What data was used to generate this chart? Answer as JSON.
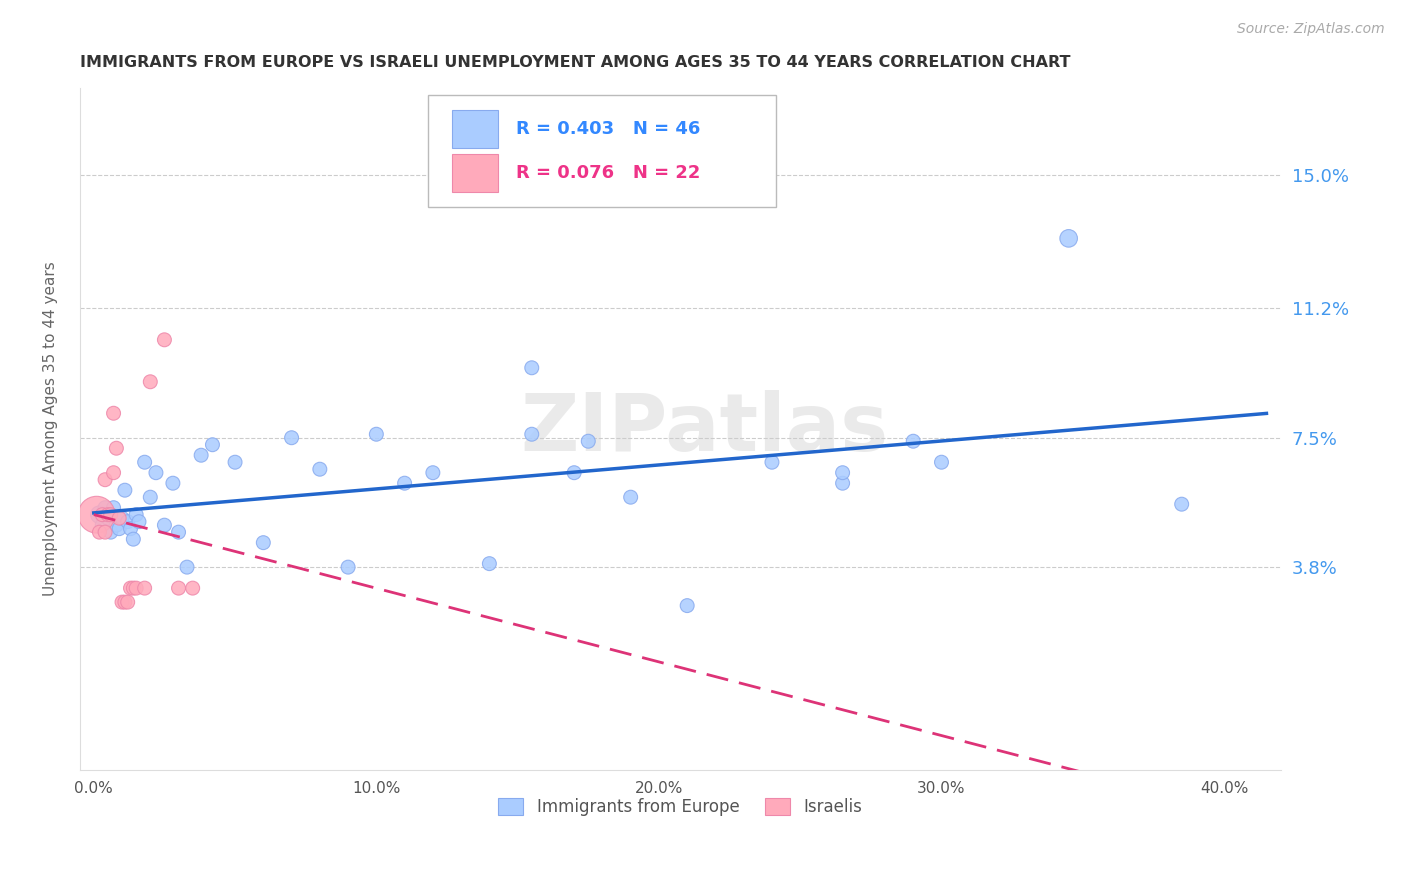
{
  "title": "IMMIGRANTS FROM EUROPE VS ISRAELI UNEMPLOYMENT AMONG AGES 35 TO 44 YEARS CORRELATION CHART",
  "source": "Source: ZipAtlas.com",
  "ylabel": "Unemployment Among Ages 35 to 44 years",
  "xlabel_ticks": [
    "0.0%",
    "10.0%",
    "20.0%",
    "30.0%",
    "40.0%"
  ],
  "xlabel_vals": [
    0.0,
    0.1,
    0.2,
    0.3,
    0.4
  ],
  "ylabel_ticks": [
    "15.0%",
    "11.2%",
    "7.5%",
    "3.8%"
  ],
  "ylabel_vals": [
    0.15,
    0.112,
    0.075,
    0.038
  ],
  "ylim": [
    -0.02,
    0.175
  ],
  "xlim": [
    -0.005,
    0.42
  ],
  "legend_r1_val": "0.403",
  "legend_n1_val": "46",
  "legend_r2_val": "0.076",
  "legend_n2_val": "22",
  "legend_label1": "Immigrants from Europe",
  "legend_label2": "Israelis",
  "watermark": "ZIPatlas",
  "blue_color": "#aaccff",
  "blue_edge": "#88aaee",
  "pink_color": "#ffaabb",
  "pink_edge": "#ee88aa",
  "trend_blue": "#2266cc",
  "trend_pink": "#dd3377",
  "blue_scatter_x": [
    0.002,
    0.003,
    0.004,
    0.005,
    0.006,
    0.007,
    0.008,
    0.009,
    0.01,
    0.011,
    0.012,
    0.013,
    0.014,
    0.015,
    0.016,
    0.018,
    0.02,
    0.022,
    0.025,
    0.028,
    0.03,
    0.033,
    0.038,
    0.042,
    0.05,
    0.06,
    0.07,
    0.08,
    0.09,
    0.1,
    0.11,
    0.12,
    0.14,
    0.155,
    0.17,
    0.19,
    0.21,
    0.24,
    0.265,
    0.29,
    0.155,
    0.175,
    0.265,
    0.3,
    0.345,
    0.385
  ],
  "blue_scatter_y": [
    0.053,
    0.05,
    0.055,
    0.052,
    0.048,
    0.055,
    0.05,
    0.049,
    0.052,
    0.06,
    0.051,
    0.049,
    0.046,
    0.053,
    0.051,
    0.068,
    0.058,
    0.065,
    0.05,
    0.062,
    0.048,
    0.038,
    0.07,
    0.073,
    0.068,
    0.045,
    0.075,
    0.066,
    0.038,
    0.076,
    0.062,
    0.065,
    0.039,
    0.076,
    0.065,
    0.058,
    0.027,
    0.068,
    0.062,
    0.074,
    0.095,
    0.074,
    0.065,
    0.068,
    0.132,
    0.056
  ],
  "blue_scatter_sizes": [
    160,
    100,
    100,
    100,
    100,
    100,
    100,
    100,
    100,
    100,
    100,
    100,
    100,
    100,
    100,
    100,
    100,
    100,
    100,
    100,
    100,
    100,
    100,
    100,
    100,
    100,
    100,
    100,
    100,
    100,
    100,
    100,
    100,
    100,
    100,
    100,
    100,
    100,
    100,
    100,
    100,
    100,
    100,
    100,
    160,
    100
  ],
  "pink_scatter_x": [
    0.001,
    0.002,
    0.003,
    0.004,
    0.004,
    0.005,
    0.006,
    0.007,
    0.007,
    0.008,
    0.009,
    0.01,
    0.011,
    0.012,
    0.013,
    0.014,
    0.015,
    0.018,
    0.02,
    0.025,
    0.03,
    0.035
  ],
  "pink_scatter_y": [
    0.053,
    0.048,
    0.053,
    0.048,
    0.063,
    0.053,
    0.053,
    0.082,
    0.065,
    0.072,
    0.052,
    0.028,
    0.028,
    0.028,
    0.032,
    0.032,
    0.032,
    0.032,
    0.091,
    0.103,
    0.032,
    0.032
  ],
  "pink_scatter_sizes": [
    700,
    100,
    100,
    100,
    100,
    100,
    100,
    100,
    100,
    100,
    100,
    100,
    100,
    100,
    100,
    100,
    100,
    100,
    100,
    100,
    100,
    100
  ]
}
